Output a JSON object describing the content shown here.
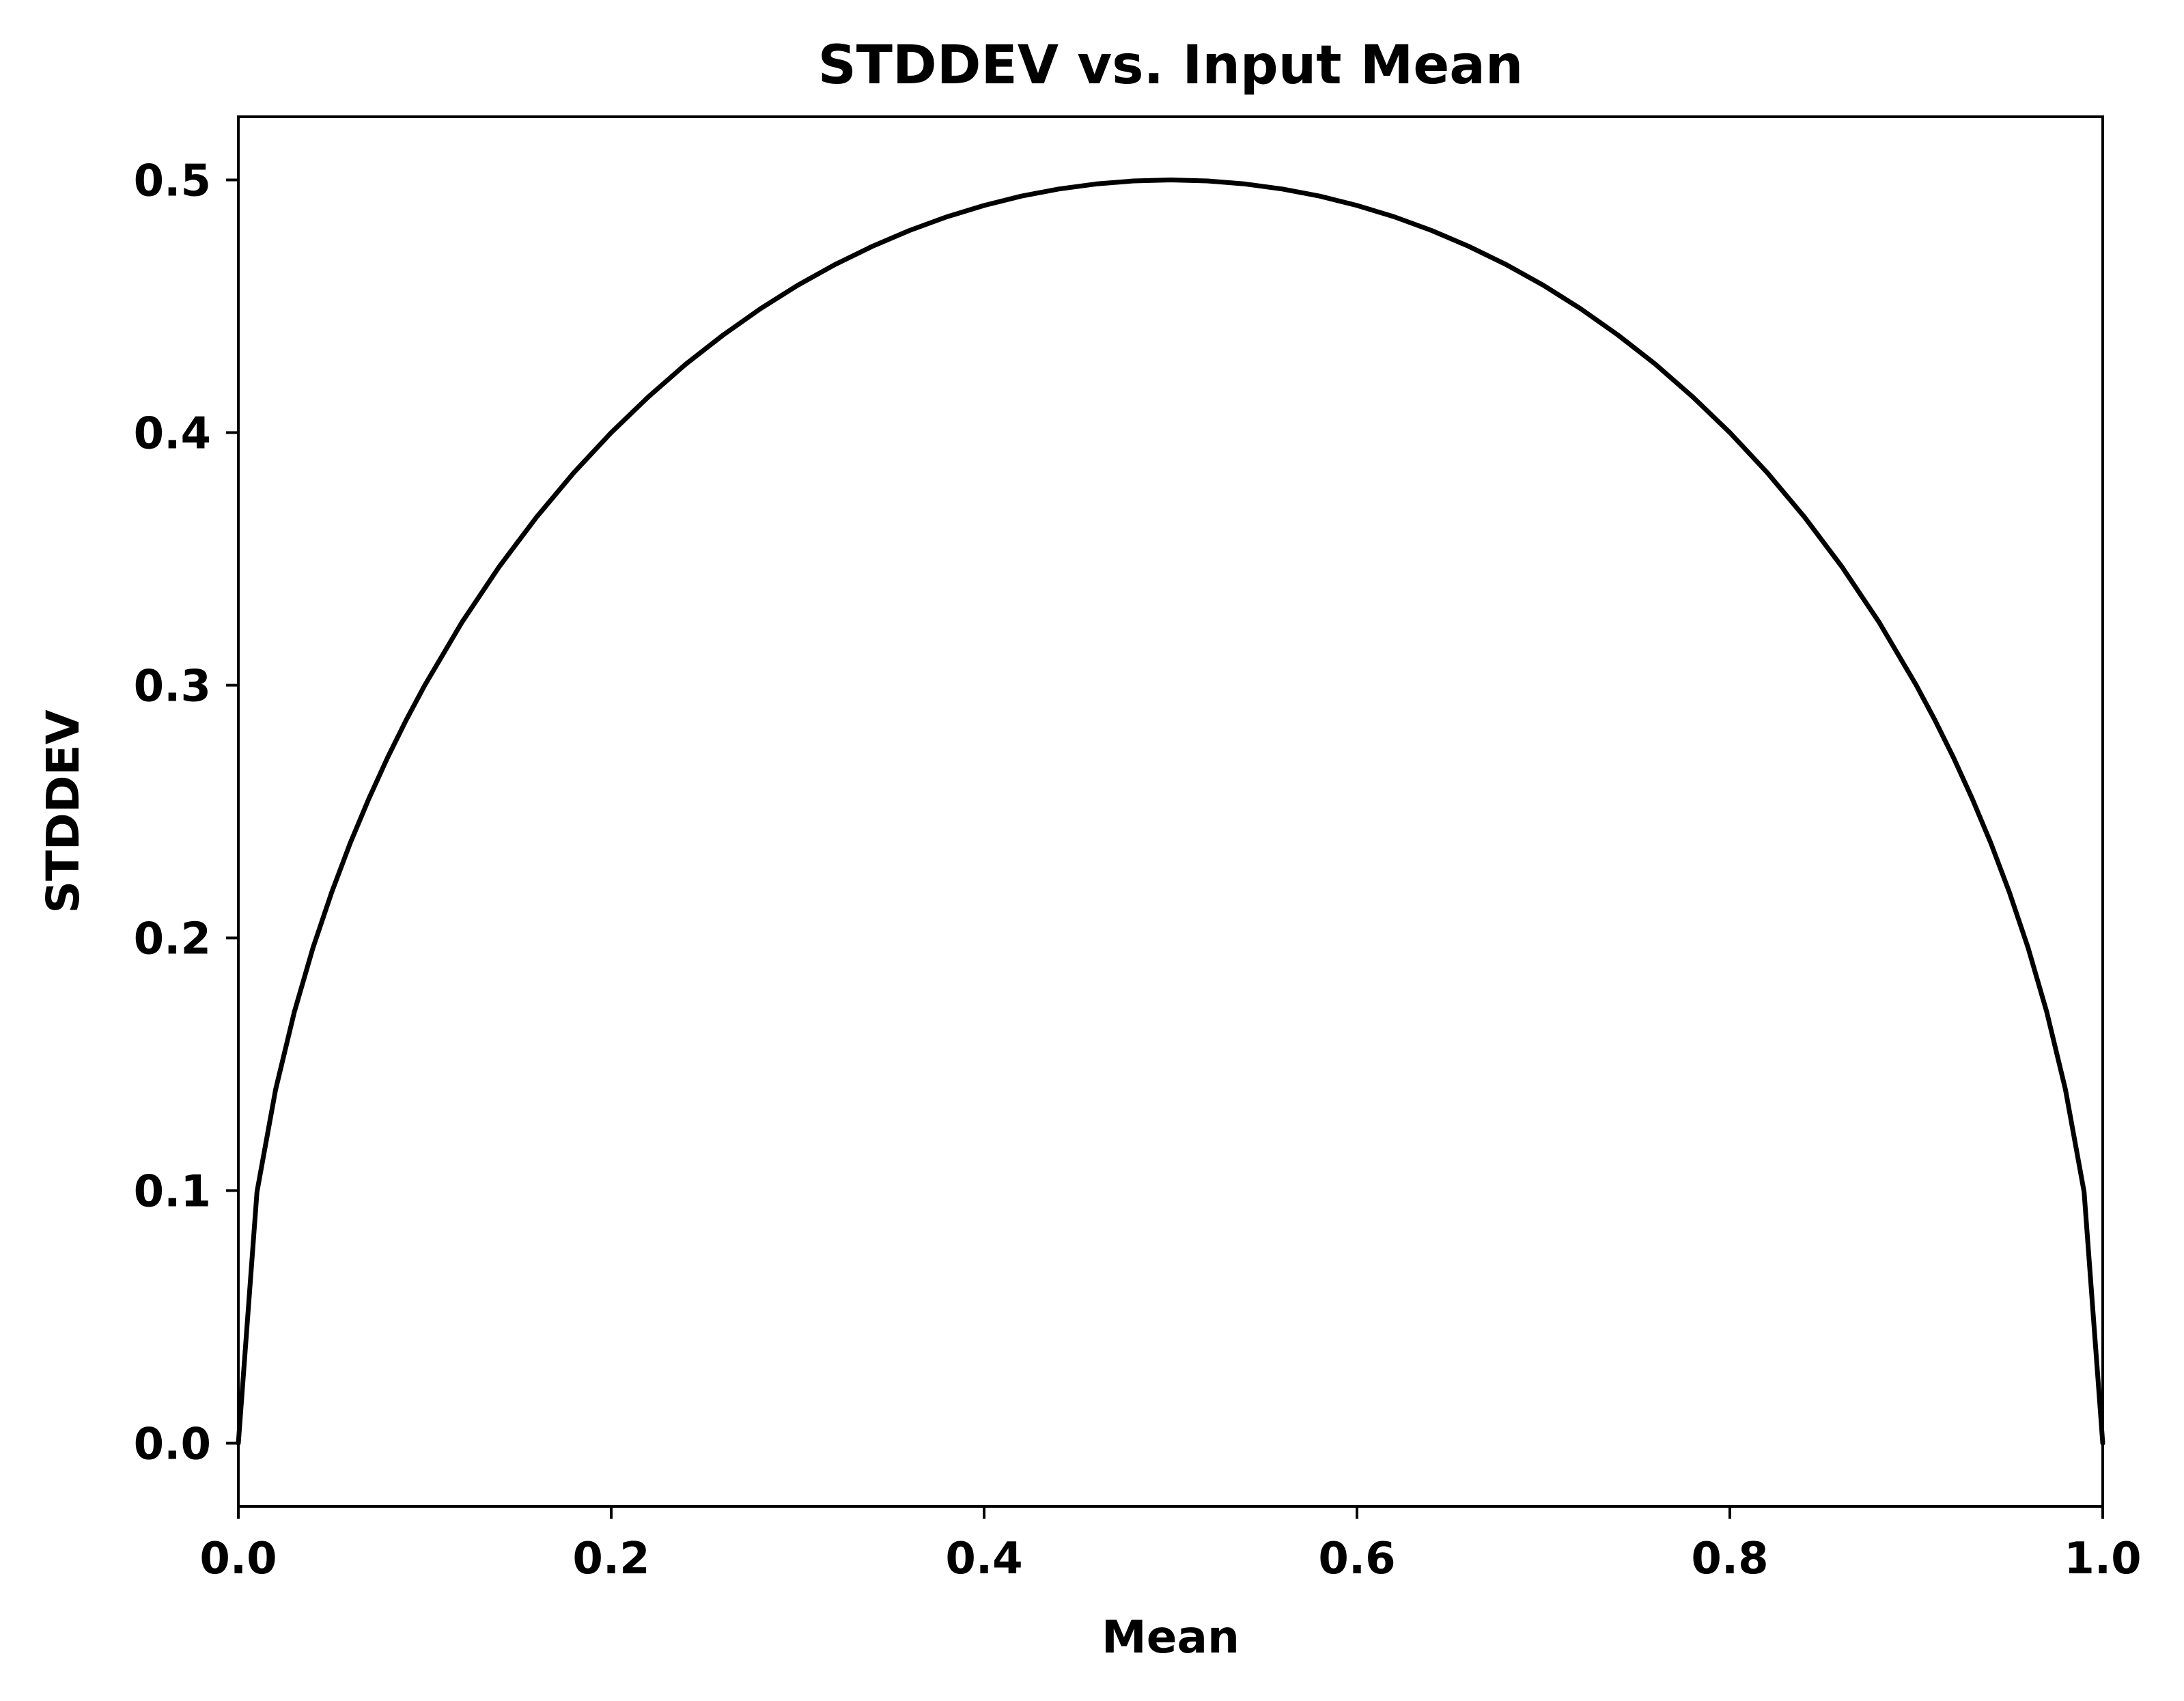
{
  "chart_data": {
    "type": "line",
    "title": "STDDEV vs. Input Mean",
    "xlabel": "Mean",
    "ylabel": "STDDEV",
    "xlim": [
      0.0,
      1.0
    ],
    "ylim": [
      -0.025,
      0.525
    ],
    "xticks": [
      0.0,
      0.2,
      0.4,
      0.6,
      0.8,
      1.0
    ],
    "xtick_labels": [
      "0.0",
      "0.2",
      "0.4",
      "0.6",
      "0.8",
      "1.0"
    ],
    "yticks": [
      0.0,
      0.1,
      0.2,
      0.3,
      0.4,
      0.5
    ],
    "ytick_labels": [
      "0.0",
      "0.1",
      "0.2",
      "0.3",
      "0.4",
      "0.5"
    ],
    "grid": false,
    "colors": {
      "line": "#000000",
      "axes": "#000000",
      "background": "#ffffff"
    },
    "series": [
      {
        "x": [
          0.0,
          0.01,
          0.02,
          0.03,
          0.04,
          0.05,
          0.06,
          0.07,
          0.08,
          0.09,
          0.1,
          0.12,
          0.14,
          0.16,
          0.18,
          0.2,
          0.22,
          0.24,
          0.26,
          0.28,
          0.3,
          0.32,
          0.34,
          0.36,
          0.38,
          0.4,
          0.42,
          0.44,
          0.46,
          0.48,
          0.5,
          0.52,
          0.54,
          0.56,
          0.58,
          0.6,
          0.62,
          0.64,
          0.66,
          0.68,
          0.7,
          0.72,
          0.74,
          0.76,
          0.78,
          0.8,
          0.82,
          0.84,
          0.86,
          0.88,
          0.9,
          0.91,
          0.92,
          0.93,
          0.94,
          0.95,
          0.96,
          0.97,
          0.98,
          0.99,
          1.0
        ],
        "y": [
          0.0,
          0.0995,
          0.14,
          0.1706,
          0.196,
          0.2179,
          0.2375,
          0.2551,
          0.2713,
          0.2862,
          0.3,
          0.325,
          0.347,
          0.3666,
          0.3842,
          0.4,
          0.4142,
          0.4271,
          0.4386,
          0.449,
          0.4583,
          0.4665,
          0.4737,
          0.48,
          0.4854,
          0.4899,
          0.4936,
          0.4964,
          0.4984,
          0.4996,
          0.5,
          0.4996,
          0.4984,
          0.4964,
          0.4936,
          0.4899,
          0.4854,
          0.48,
          0.4737,
          0.4665,
          0.4583,
          0.449,
          0.4386,
          0.4271,
          0.4142,
          0.4,
          0.3842,
          0.3666,
          0.347,
          0.325,
          0.3,
          0.2862,
          0.2713,
          0.2551,
          0.2375,
          0.2179,
          0.196,
          0.1706,
          0.14,
          0.0995,
          0.0
        ]
      }
    ]
  }
}
